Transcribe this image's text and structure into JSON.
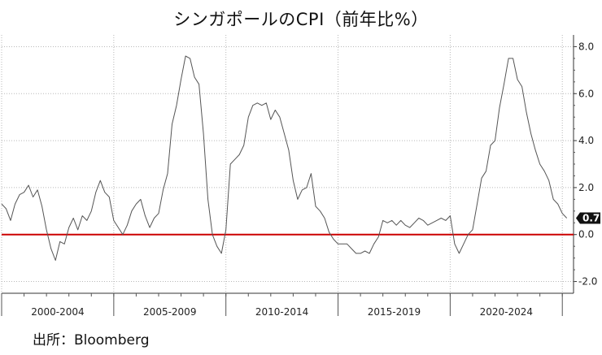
{
  "title": "シンガポールのCPI（前年比%）",
  "source": "出所：Bloomberg",
  "colors": {
    "line": "#555555",
    "zero_line": "#cc0000",
    "grid": "#b8b8b8",
    "badge": "#111111",
    "badge_text": "#ffffff"
  },
  "chart_data": {
    "type": "line",
    "title": "シンガポールのCPI（前年比%）",
    "xlabel": "",
    "ylabel": "",
    "x_range": [
      2000,
      2025.5
    ],
    "ylim": [
      -2.5,
      8.5
    ],
    "y_ticks": [
      8.0,
      6.0,
      4.0,
      2.0,
      0.0,
      -2.0
    ],
    "y_tick_labels": [
      "8.0",
      "6.0",
      "4.0",
      "2.0",
      "0.0",
      "-2.0"
    ],
    "x_tick_positions": [
      2000,
      2005,
      2010,
      2015,
      2020,
      2025
    ],
    "x_period_labels": [
      "2000-2004",
      "2005-2009",
      "2010-2014",
      "2015-2019",
      "2020-2024"
    ],
    "last_value_label": "0.7",
    "reference_line": 0.0,
    "grid": true,
    "series": [
      {
        "x": [
          2000.0,
          2000.2,
          2000.4,
          2000.6,
          2000.8,
          2001.0,
          2001.2,
          2001.4,
          2001.6,
          2001.8,
          2002.0,
          2002.2,
          2002.4,
          2002.6,
          2002.8,
          2003.0,
          2003.2,
          2003.4,
          2003.6,
          2003.8,
          2004.0,
          2004.2,
          2004.4,
          2004.6,
          2004.8,
          2005.0,
          2005.2,
          2005.4,
          2005.6,
          2005.8,
          2006.0,
          2006.2,
          2006.4,
          2006.6,
          2006.8,
          2007.0,
          2007.2,
          2007.4,
          2007.6,
          2007.8,
          2008.0,
          2008.2,
          2008.4,
          2008.6,
          2008.8,
          2009.0,
          2009.2,
          2009.4,
          2009.6,
          2009.8,
          2010.0,
          2010.2,
          2010.4,
          2010.6,
          2010.8,
          2011.0,
          2011.2,
          2011.4,
          2011.6,
          2011.8,
          2012.0,
          2012.2,
          2012.4,
          2012.6,
          2012.8,
          2013.0,
          2013.2,
          2013.4,
          2013.6,
          2013.8,
          2014.0,
          2014.2,
          2014.4,
          2014.6,
          2014.8,
          2015.0,
          2015.2,
          2015.4,
          2015.6,
          2015.8,
          2016.0,
          2016.2,
          2016.4,
          2016.6,
          2016.8,
          2017.0,
          2017.2,
          2017.4,
          2017.6,
          2017.8,
          2018.0,
          2018.2,
          2018.4,
          2018.6,
          2018.8,
          2019.0,
          2019.2,
          2019.4,
          2019.6,
          2019.8,
          2020.0,
          2020.2,
          2020.4,
          2020.6,
          2020.8,
          2021.0,
          2021.2,
          2021.4,
          2021.6,
          2021.8,
          2022.0,
          2022.2,
          2022.4,
          2022.6,
          2022.8,
          2023.0,
          2023.2,
          2023.4,
          2023.6,
          2023.8,
          2024.0,
          2024.2,
          2024.4,
          2024.6,
          2024.8,
          2025.0,
          2025.2
        ],
        "values": [
          1.3,
          1.1,
          0.6,
          1.3,
          1.7,
          1.8,
          2.1,
          1.6,
          1.9,
          1.2,
          0.2,
          -0.6,
          -1.1,
          -0.3,
          -0.4,
          0.3,
          0.7,
          0.2,
          0.8,
          0.6,
          1.0,
          1.8,
          2.3,
          1.8,
          1.6,
          0.6,
          0.3,
          0.0,
          0.4,
          1.0,
          1.3,
          1.5,
          0.8,
          0.3,
          0.7,
          0.9,
          1.9,
          2.6,
          4.7,
          5.5,
          6.6,
          7.6,
          7.5,
          6.7,
          6.4,
          4.3,
          1.5,
          0.0,
          -0.5,
          -0.8,
          0.2,
          3.0,
          3.2,
          3.4,
          3.8,
          5.0,
          5.5,
          5.6,
          5.5,
          5.6,
          4.9,
          5.3,
          5.0,
          4.3,
          3.6,
          2.3,
          1.5,
          1.9,
          2.0,
          2.6,
          1.2,
          1.0,
          0.7,
          0.1,
          -0.2,
          -0.4,
          -0.4,
          -0.4,
          -0.6,
          -0.8,
          -0.8,
          -0.7,
          -0.8,
          -0.4,
          -0.1,
          0.6,
          0.5,
          0.6,
          0.4,
          0.6,
          0.4,
          0.3,
          0.5,
          0.7,
          0.6,
          0.4,
          0.5,
          0.6,
          0.7,
          0.6,
          0.8,
          -0.4,
          -0.8,
          -0.4,
          0.0,
          0.2,
          1.3,
          2.4,
          2.7,
          3.8,
          4.0,
          5.4,
          6.4,
          7.5,
          7.5,
          6.6,
          6.3,
          5.2,
          4.3,
          3.6,
          3.0,
          2.7,
          2.3,
          1.5,
          1.3,
          0.9,
          0.7
        ]
      }
    ]
  }
}
